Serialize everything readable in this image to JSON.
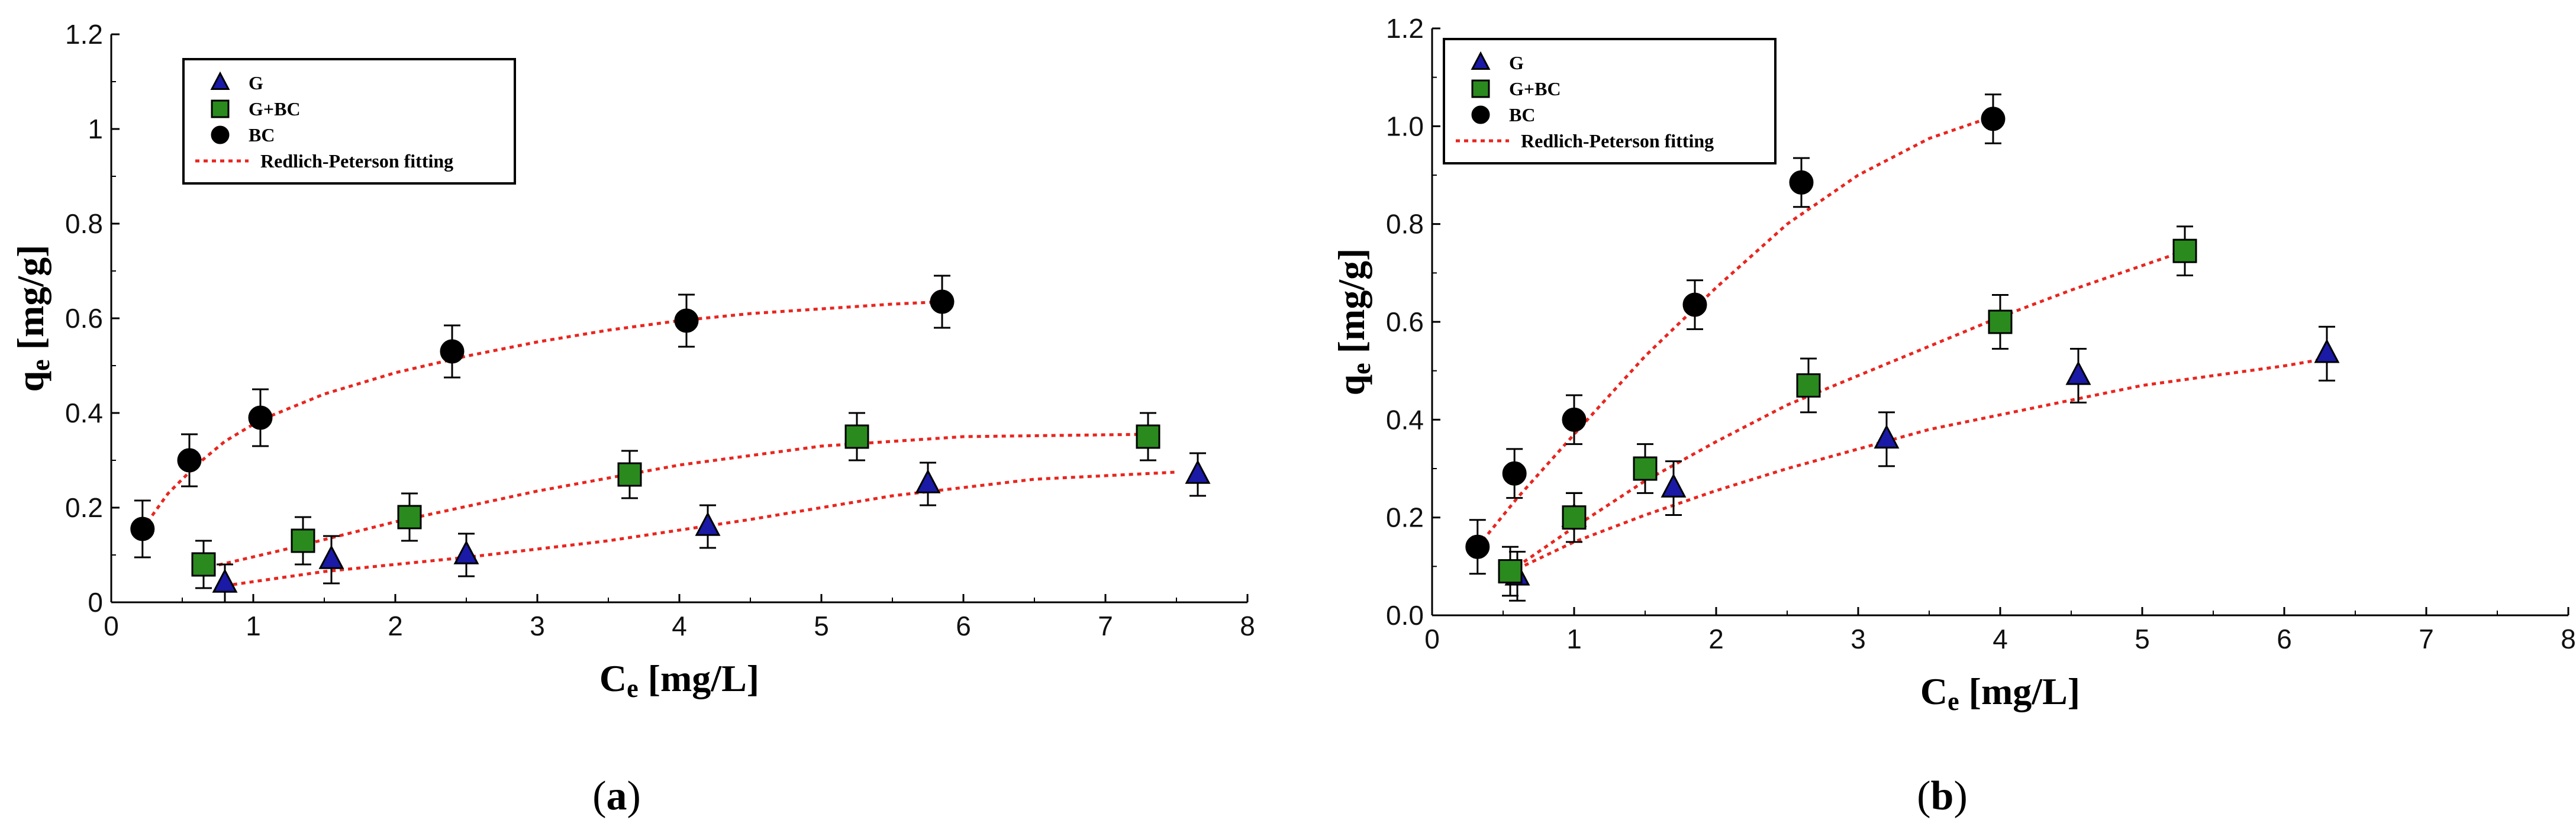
{
  "chart_data": [
    {
      "type": "scatter",
      "panel": "a",
      "caption_letter": "a",
      "caption_open": "(",
      "caption_close": ")",
      "xlabel_main": "C",
      "xlabel_sub": "e",
      "xlabel_unit": " [mg/L]",
      "ylabel_main": "q",
      "ylabel_sub": "e",
      "ylabel_unit": " [mg/g]",
      "xlim": [
        0,
        8
      ],
      "ylim": [
        0,
        1.2
      ],
      "x_ticks": [
        "0",
        "1",
        "2",
        "3",
        "4",
        "5",
        "6",
        "7",
        "8"
      ],
      "y_ticks": [
        "0",
        "0.2",
        "0.4",
        "0.6",
        "0.8",
        "1",
        "1.2"
      ],
      "legend_position": "top-left",
      "legend": [
        "G",
        "G+BC",
        "BC",
        "Redlich-Peterson fitting"
      ],
      "series": [
        {
          "name": "G",
          "marker": "triangle",
          "color": "#1a1aa6",
          "x": [
            0.8,
            1.55,
            2.5,
            4.2,
            5.75,
            7.65
          ],
          "y": [
            0.04,
            0.09,
            0.1,
            0.16,
            0.25,
            0.27
          ],
          "err": [
            0.04,
            0.05,
            0.045,
            0.045,
            0.045,
            0.045
          ]
        },
        {
          "name": "G+BC",
          "marker": "square",
          "color": "#2a8a1e",
          "x": [
            0.65,
            1.35,
            2.1,
            3.65,
            5.25,
            7.3
          ],
          "y": [
            0.08,
            0.13,
            0.18,
            0.27,
            0.35,
            0.35
          ],
          "err": [
            0.05,
            0.05,
            0.05,
            0.05,
            0.05,
            0.05
          ]
        },
        {
          "name": "BC",
          "marker": "circle",
          "color": "#000000",
          "x": [
            0.22,
            0.55,
            1.05,
            2.4,
            4.05,
            5.85
          ],
          "y": [
            0.155,
            0.3,
            0.39,
            0.53,
            0.595,
            0.635
          ],
          "err": [
            0.06,
            0.055,
            0.06,
            0.055,
            0.055,
            0.055
          ]
        }
      ],
      "fits": [
        {
          "name": "G fit",
          "x": [
            0.8,
            1.5,
            2.5,
            3.5,
            4.5,
            5.5,
            6.5,
            7.5
          ],
          "y": [
            0.035,
            0.065,
            0.095,
            0.13,
            0.175,
            0.225,
            0.26,
            0.275
          ]
        },
        {
          "name": "G+BC fit",
          "x": [
            0.7,
            1.2,
            2,
            3,
            4,
            5,
            6,
            7.3
          ],
          "y": [
            0.075,
            0.11,
            0.17,
            0.235,
            0.29,
            0.33,
            0.35,
            0.355
          ]
        },
        {
          "name": "BC fit",
          "x": [
            0.22,
            0.4,
            0.6,
            0.8,
            1.05,
            1.5,
            2,
            2.5,
            3,
            3.5,
            4,
            4.5,
            5,
            5.5,
            5.85
          ],
          "y": [
            0.155,
            0.23,
            0.29,
            0.34,
            0.385,
            0.44,
            0.485,
            0.52,
            0.55,
            0.575,
            0.595,
            0.61,
            0.62,
            0.63,
            0.635
          ]
        }
      ]
    },
    {
      "type": "scatter",
      "panel": "b",
      "caption_letter": "b",
      "caption_open": "(",
      "caption_close": ")",
      "xlabel_main": "C",
      "xlabel_sub": "e",
      "xlabel_unit": " [mg/L]",
      "ylabel_main": "q",
      "ylabel_sub": "e",
      "ylabel_unit": " [mg/g]",
      "xlim": [
        0,
        8
      ],
      "ylim": [
        0,
        1.2
      ],
      "x_ticks": [
        "0",
        "1",
        "2",
        "3",
        "4",
        "5",
        "6",
        "7",
        "8"
      ],
      "y_ticks": [
        "0.0",
        "0.2",
        "0.4",
        "0.6",
        "0.8",
        "1.0",
        "1.2"
      ],
      "legend_position": "top-left",
      "legend": [
        "G",
        "G+BC",
        "BC",
        "Redlich-Peterson fitting"
      ],
      "series": [
        {
          "name": "G",
          "marker": "triangle",
          "color": "#1a1aa6",
          "x": [
            0.6,
            1.0,
            1.7,
            3.2,
            4.55,
            6.3
          ],
          "y": [
            0.08,
            0.2,
            0.26,
            0.36,
            0.49,
            0.535
          ],
          "err": [
            0.05,
            0.05,
            0.055,
            0.055,
            0.055,
            0.055
          ]
        },
        {
          "name": "G+BC",
          "marker": "square",
          "color": "#2a8a1e",
          "x": [
            0.55,
            1.0,
            1.5,
            2.65,
            4.0,
            5.3
          ],
          "y": [
            0.09,
            0.2,
            0.3,
            0.47,
            0.6,
            0.745
          ],
          "err": [
            0.05,
            0.05,
            0.05,
            0.055,
            0.055,
            0.05
          ]
        },
        {
          "name": "BC",
          "marker": "circle",
          "color": "#000000",
          "x": [
            0.32,
            0.58,
            1.0,
            1.85,
            2.6,
            3.95
          ],
          "y": [
            0.14,
            0.29,
            0.4,
            0.635,
            0.885,
            1.015
          ],
          "err": [
            0.055,
            0.05,
            0.05,
            0.05,
            0.05,
            0.05
          ]
        }
      ],
      "fits": [
        {
          "name": "G fit",
          "x": [
            0.6,
            1,
            1.5,
            2,
            2.5,
            3,
            3.5,
            4,
            4.5,
            5,
            5.5,
            6,
            6.3
          ],
          "y": [
            0.095,
            0.15,
            0.205,
            0.255,
            0.3,
            0.34,
            0.38,
            0.41,
            0.44,
            0.47,
            0.49,
            0.51,
            0.525
          ]
        },
        {
          "name": "G+BC fit",
          "x": [
            0.55,
            1,
            1.5,
            2,
            2.5,
            3,
            3.5,
            4,
            4.5,
            5,
            5.3
          ],
          "y": [
            0.09,
            0.18,
            0.275,
            0.355,
            0.43,
            0.49,
            0.55,
            0.61,
            0.665,
            0.715,
            0.745
          ]
        },
        {
          "name": "BC fit",
          "x": [
            0.32,
            0.6,
            1,
            1.5,
            2,
            2.5,
            3,
            3.5,
            3.95
          ],
          "y": [
            0.14,
            0.24,
            0.37,
            0.53,
            0.67,
            0.8,
            0.9,
            0.975,
            1.02
          ]
        }
      ]
    }
  ]
}
